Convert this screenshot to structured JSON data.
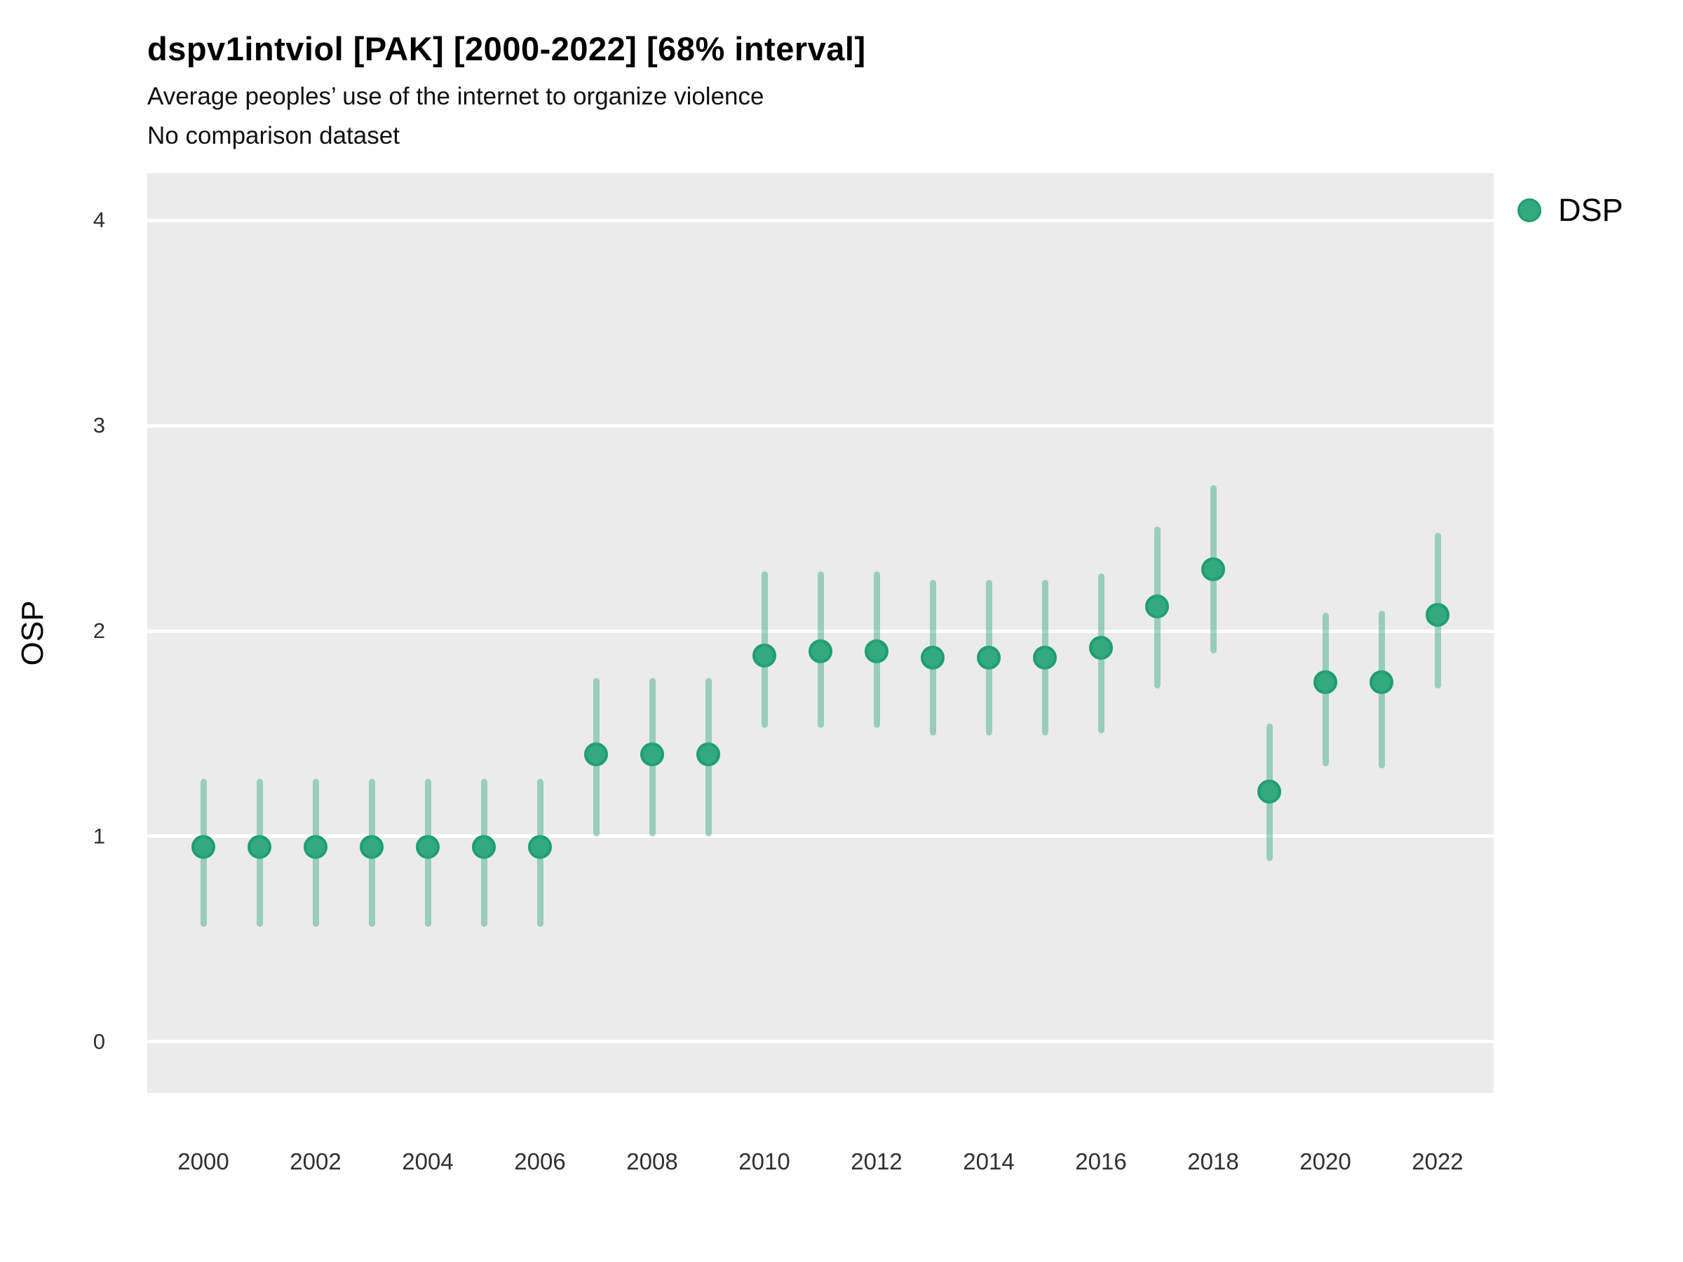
{
  "header": {
    "title": "dspv1intviol [PAK] [2000-2022] [68% interval]",
    "subtitle": "Average peoples’ use of the internet to organize violence",
    "note": "No comparison dataset"
  },
  "legend": {
    "label": "DSP"
  },
  "colors": {
    "panel_bg": "#ebebeb",
    "gridline": "#ffffff",
    "dot_fill": "#32a97f",
    "dot_stroke": "#1e9e6e",
    "interval": "rgba(50,169,127,0.45)"
  },
  "chart_data": {
    "type": "pointrange",
    "title": "dspv1intviol [PAK] [2000-2022] [68% interval]",
    "subtitle": "Average peoples’ use of the internet to organize violence",
    "note": "No comparison dataset",
    "xlabel": "",
    "ylabel": "OSP",
    "interval_level": "68%",
    "xlim": [
      1999,
      2023
    ],
    "ylim": [
      -0.25,
      4.23
    ],
    "x_ticks": [
      2000,
      2002,
      2004,
      2006,
      2008,
      2010,
      2012,
      2014,
      2016,
      2018,
      2020,
      2022
    ],
    "y_ticks": [
      0,
      1,
      2,
      3,
      4
    ],
    "grid": "horizontal-only",
    "legend_position": "right-top",
    "series": [
      {
        "name": "DSP",
        "points": [
          {
            "year": 2000,
            "value": 0.95,
            "lo": 0.56,
            "hi": 1.28
          },
          {
            "year": 2001,
            "value": 0.95,
            "lo": 0.56,
            "hi": 1.28
          },
          {
            "year": 2002,
            "value": 0.95,
            "lo": 0.56,
            "hi": 1.28
          },
          {
            "year": 2003,
            "value": 0.95,
            "lo": 0.56,
            "hi": 1.28
          },
          {
            "year": 2004,
            "value": 0.95,
            "lo": 0.56,
            "hi": 1.28
          },
          {
            "year": 2005,
            "value": 0.95,
            "lo": 0.56,
            "hi": 1.28
          },
          {
            "year": 2006,
            "value": 0.95,
            "lo": 0.56,
            "hi": 1.28
          },
          {
            "year": 2007,
            "value": 1.4,
            "lo": 1.0,
            "hi": 1.77
          },
          {
            "year": 2008,
            "value": 1.4,
            "lo": 1.0,
            "hi": 1.77
          },
          {
            "year": 2009,
            "value": 1.4,
            "lo": 1.0,
            "hi": 1.77
          },
          {
            "year": 2010,
            "value": 1.88,
            "lo": 1.53,
            "hi": 2.29
          },
          {
            "year": 2011,
            "value": 1.9,
            "lo": 1.53,
            "hi": 2.29
          },
          {
            "year": 2012,
            "value": 1.9,
            "lo": 1.53,
            "hi": 2.29
          },
          {
            "year": 2013,
            "value": 1.87,
            "lo": 1.49,
            "hi": 2.25
          },
          {
            "year": 2014,
            "value": 1.87,
            "lo": 1.49,
            "hi": 2.25
          },
          {
            "year": 2015,
            "value": 1.87,
            "lo": 1.49,
            "hi": 2.25
          },
          {
            "year": 2016,
            "value": 1.92,
            "lo": 1.5,
            "hi": 2.28
          },
          {
            "year": 2017,
            "value": 2.12,
            "lo": 1.72,
            "hi": 2.51
          },
          {
            "year": 2018,
            "value": 2.3,
            "lo": 1.89,
            "hi": 2.71
          },
          {
            "year": 2019,
            "value": 1.22,
            "lo": 0.88,
            "hi": 1.55
          },
          {
            "year": 2020,
            "value": 1.75,
            "lo": 1.34,
            "hi": 2.09
          },
          {
            "year": 2021,
            "value": 1.75,
            "lo": 1.33,
            "hi": 2.1
          },
          {
            "year": 2022,
            "value": 2.08,
            "lo": 1.72,
            "hi": 2.48
          }
        ]
      }
    ]
  }
}
